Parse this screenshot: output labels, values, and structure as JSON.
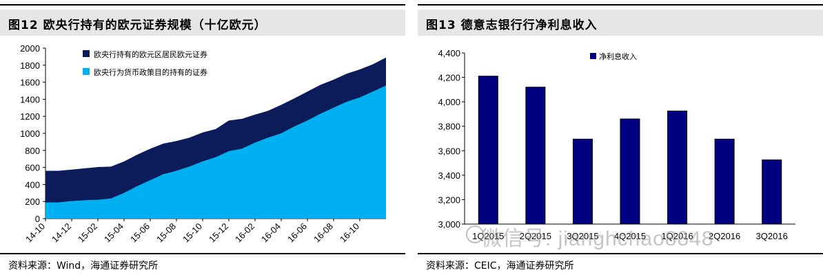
{
  "left_panel": {
    "title": "图12  欧央行持有的欧元证券规模（十亿欧元）",
    "source": "资料来源：Wind，海通证券研究所"
  },
  "right_panel": {
    "title": "图13  德意志银行行净利息收入",
    "source": "资料来源：CEIC，海通证券研究所",
    "watermark": "微信号: jianghchao8848"
  },
  "chart_data": [
    {
      "type": "area",
      "stacked": true,
      "title": "欧央行持有的欧元证券规模（十亿欧元）",
      "ylim": [
        0,
        2000
      ],
      "yticks": [
        0,
        200,
        400,
        600,
        800,
        1000,
        1200,
        1400,
        1600,
        1800,
        2000
      ],
      "xticks": [
        "14-10",
        "14-12",
        "15-02",
        "15-04",
        "15-06",
        "15-08",
        "15-10",
        "15-12",
        "16-02",
        "16-04",
        "16-06",
        "16-08",
        "16-10"
      ],
      "legend_position": "top-left",
      "x": [
        "14-10",
        "14-11",
        "14-12",
        "15-01",
        "15-02",
        "15-03",
        "15-04",
        "15-05",
        "15-06",
        "15-07",
        "15-08",
        "15-09",
        "15-10",
        "15-11",
        "15-12",
        "16-01",
        "16-02",
        "16-03",
        "16-04",
        "16-05",
        "16-06",
        "16-07",
        "16-08",
        "16-09",
        "16-10",
        "16-11",
        "16-12"
      ],
      "series": [
        {
          "name": "欧央行为货币政策目的持有的证券",
          "color": "#00b0f0",
          "values": [
            190,
            190,
            205,
            215,
            220,
            235,
            300,
            380,
            450,
            520,
            560,
            610,
            670,
            720,
            790,
            820,
            890,
            950,
            1000,
            1080,
            1150,
            1230,
            1300,
            1370,
            1420,
            1490,
            1560
          ]
        },
        {
          "name": "欧央行持有的欧元区居民欧元证券",
          "color": "#0c1c5a",
          "values": [
            370,
            370,
            370,
            375,
            385,
            375,
            370,
            370,
            370,
            360,
            350,
            340,
            340,
            330,
            360,
            350,
            330,
            315,
            335,
            330,
            340,
            340,
            330,
            330,
            330,
            320,
            330
          ]
        }
      ]
    },
    {
      "type": "bar",
      "title": "德意志银行行净利息收入",
      "categories": [
        "1Q2015",
        "2Q2015",
        "3Q2015",
        "4Q2015",
        "1Q2016",
        "2Q2016",
        "3Q2016"
      ],
      "ytick_labels": [
        "3,000",
        "3,200",
        "3,400",
        "3,600",
        "3,800",
        "4,000",
        "4,200",
        "4,400"
      ],
      "series": [
        {
          "name": "净利息收入",
          "color": "#000080",
          "values": [
            4210,
            4120,
            3695,
            3860,
            3925,
            3695,
            3525
          ]
        }
      ],
      "ylim": [
        3000,
        4400
      ],
      "legend_position": "top-center"
    }
  ]
}
